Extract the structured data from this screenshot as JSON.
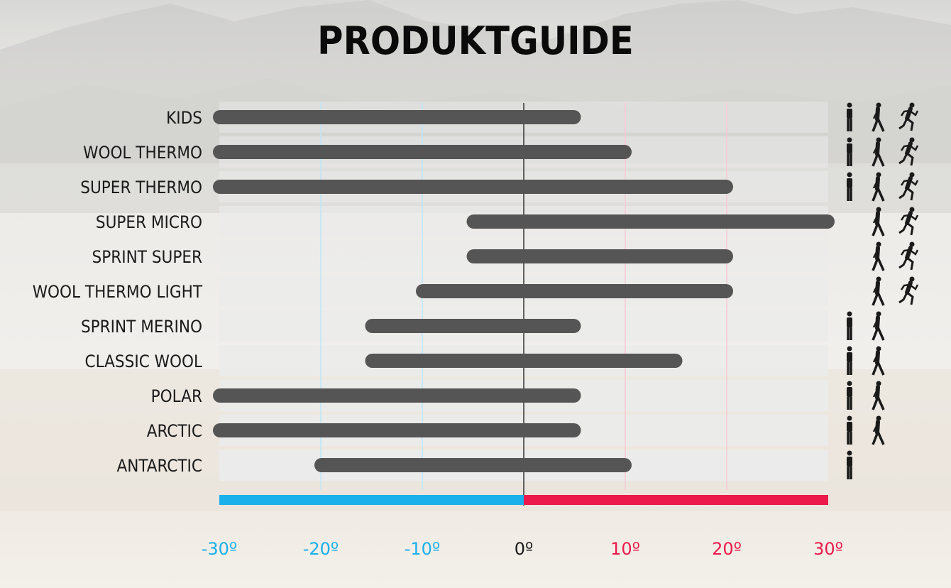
{
  "title": "PRODUKTGUIDE",
  "colors": {
    "bar": "#555556",
    "cold": "#1ab0ec",
    "warm": "#eb1a4b",
    "zero_line": "#333333",
    "row_bg": "#ebebeb"
  },
  "chart_data": {
    "type": "bar",
    "orientation": "horizontal-range",
    "categories": [
      "KIDS",
      "WOOL THERMO",
      "SUPER THERMO",
      "SUPER MICRO",
      "SPRINT SUPER",
      "WOOL THERMO LIGHT",
      "SPRINT MERINO",
      "CLASSIC WOOL",
      "POLAR",
      "ARCTIC",
      "ANTARCTIC"
    ],
    "ranges": [
      [
        -30,
        5
      ],
      [
        -30,
        10
      ],
      [
        -30,
        20
      ],
      [
        -5,
        30
      ],
      [
        -5,
        20
      ],
      [
        -10,
        20
      ],
      [
        -15,
        5
      ],
      [
        -15,
        15
      ],
      [
        -30,
        5
      ],
      [
        -30,
        5
      ],
      [
        -20,
        10
      ]
    ],
    "activity_icons": [
      [
        "standing-icon",
        "walking-icon",
        "running-icon"
      ],
      [
        "standing-icon",
        "walking-icon",
        "running-icon"
      ],
      [
        "standing-icon",
        "walking-icon",
        "running-icon"
      ],
      [
        "walking-icon",
        "running-icon"
      ],
      [
        "walking-icon",
        "running-icon"
      ],
      [
        "walking-icon",
        "running-icon"
      ],
      [
        "standing-icon",
        "walking-icon"
      ],
      [
        "standing-icon",
        "walking-icon"
      ],
      [
        "standing-icon",
        "walking-icon"
      ],
      [
        "standing-icon",
        "walking-icon"
      ],
      [
        "standing-icon"
      ]
    ],
    "xlim": [
      -30,
      30
    ],
    "xticks": [
      -30,
      -20,
      -10,
      0,
      10,
      20,
      30
    ],
    "xtick_labels": [
      "-30º",
      "-20º",
      "-10º",
      "0º",
      "10º",
      "20º",
      "30º"
    ],
    "xlabel": "",
    "ylabel": ""
  }
}
